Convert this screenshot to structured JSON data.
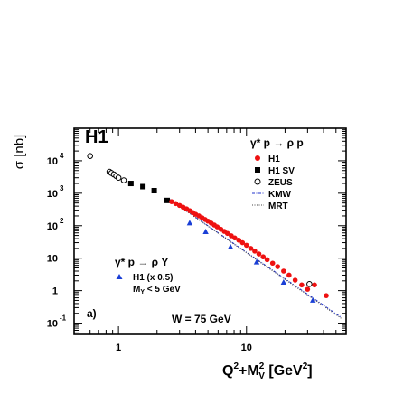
{
  "chart_data": {
    "type": "scatter",
    "title": "H1",
    "panel_label": "a)",
    "energy_label": "W = 75 GeV",
    "xlabel": "Q²+M²V [GeV²]",
    "xlabel_parts": {
      "base": "Q",
      "sup1": "2",
      "plus": "+M",
      "sup2": "2",
      "sub2": "V",
      "rest": " [GeV",
      "sup3": "2",
      "close": "]"
    },
    "ylabel": "σ [nb]",
    "x_scale": "log",
    "y_scale": "log",
    "xlim": [
      0.45,
      60
    ],
    "ylim": [
      0.045,
      100000
    ],
    "x_ticks": [
      {
        "value": 1,
        "label": "1"
      },
      {
        "value": 10,
        "label": "10"
      }
    ],
    "y_ticks": [
      {
        "value": 0.1,
        "base": "10",
        "exp": "-1"
      },
      {
        "value": 1,
        "base": "1",
        "exp": ""
      },
      {
        "value": 10,
        "base": "10",
        "exp": ""
      },
      {
        "value": 100,
        "base": "10",
        "exp": "2"
      },
      {
        "value": 1000,
        "base": "10",
        "exp": "3"
      },
      {
        "value": 10000,
        "base": "10",
        "exp": "4"
      }
    ],
    "legend_top": {
      "header": "γ* p → ρ p",
      "entries": [
        "H1",
        "H1 SV",
        "ZEUS",
        "KMW",
        "MRT"
      ]
    },
    "legend_bottom": {
      "header": "γ* p → ρ Y",
      "entry": "H1 (x 0.5)",
      "condition": {
        "base": "M",
        "sub": "Y",
        "rest": " < 5 GeV"
      }
    },
    "colors": {
      "h1": "#ee1111",
      "h1_sv": "#000000",
      "zeus": "#000000",
      "kmw": "#2233cc",
      "mrt": "#444444",
      "h1_y": "#1a3fd6"
    },
    "series": [
      {
        "name": "ZEUS",
        "marker": "open-circle",
        "x": [
          0.6,
          0.85,
          0.88,
          0.92,
          0.96,
          1.0,
          1.1,
          31.0
        ],
        "y": [
          14000,
          4600,
          4200,
          3800,
          3400,
          3000,
          2500,
          1.6
        ]
      },
      {
        "name": "H1 SV",
        "marker": "square",
        "x": [
          1.25,
          1.55,
          1.9,
          2.4
        ],
        "y": [
          2000,
          1600,
          1200,
          600
        ]
      },
      {
        "name": "H1",
        "marker": "filled-circle",
        "x": [
          2.6,
          2.8,
          3.0,
          3.2,
          3.4,
          3.6,
          3.8,
          4.0,
          4.25,
          4.5,
          4.75,
          5.0,
          5.3,
          5.6,
          5.9,
          6.3,
          6.7,
          7.1,
          7.6,
          8.1,
          8.7,
          9.3,
          10.0,
          10.8,
          11.6,
          12.5,
          13.5,
          14.5,
          16.0,
          17.5,
          19.5,
          21.5,
          24.0,
          27.0,
          30.0,
          34.0,
          42.0
        ],
        "y": [
          550,
          480,
          420,
          370,
          330,
          290,
          255,
          225,
          200,
          175,
          155,
          138,
          120,
          105,
          92,
          78,
          67,
          58,
          49,
          42,
          36,
          30,
          25,
          20,
          16.5,
          13.5,
          11,
          9,
          7,
          5.5,
          4.0,
          3.0,
          2.1,
          1.5,
          1.1,
          1.5,
          0.7
        ]
      },
      {
        "name": "H1 (x 0.5)",
        "marker": "triangle",
        "x": [
          3.6,
          4.8,
          7.5,
          12.0,
          19.5,
          33.0
        ],
        "y": [
          120,
          65,
          22,
          7.5,
          1.8,
          0.5
        ]
      }
    ],
    "curves": [
      {
        "name": "KMW",
        "style": "dash-dot",
        "x": [
          2.5,
          55
        ],
        "y": [
          650,
          0.15
        ]
      },
      {
        "name": "MRT",
        "style": "dotted",
        "x": [
          2.5,
          55
        ],
        "y": [
          640,
          0.14
        ]
      }
    ]
  }
}
